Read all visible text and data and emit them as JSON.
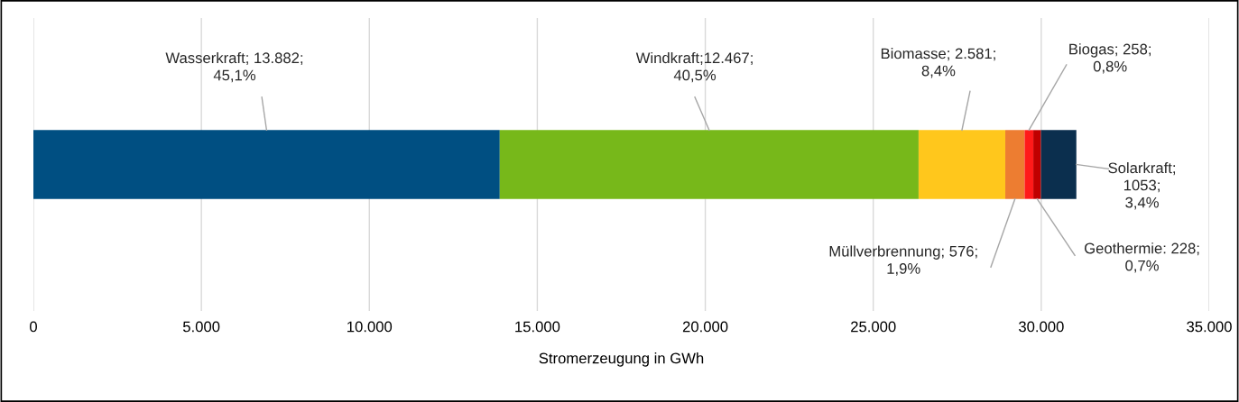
{
  "chart_data": {
    "type": "bar",
    "orientation": "horizontal",
    "stacked": true,
    "categories": [
      null
    ],
    "xlabel": "Stromerzeugung in GWh",
    "xlim": [
      0,
      35000
    ],
    "xticks": [
      0,
      {
        "value": 5000,
        "label": "5.000"
      },
      {
        "value": 10000,
        "label": "10.000"
      },
      {
        "value": 15000,
        "label": "15.000"
      },
      {
        "value": 20000,
        "label": "20.000"
      },
      {
        "value": 25000,
        "label": "25.000"
      },
      {
        "value": 30000,
        "label": "30.000"
      },
      {
        "value": 35000,
        "label": "35.000"
      }
    ],
    "grid": "x",
    "legend": false,
    "tick_labels": "x",
    "series": [
      {
        "color": "#004f82",
        "values": [
          13882
        ],
        "value_labels": [
          "Wasserkraft; 13.882;\n45,1%"
        ]
      },
      {
        "color": "#77b81a",
        "values": [
          12467
        ],
        "value_labels": [
          "Windkraft;12.467;\n40,5%"
        ]
      },
      {
        "color": "#ffc71c",
        "values": [
          2581
        ],
        "value_labels": [
          "Biomasse; 2.581;\n8,4%"
        ]
      },
      {
        "color": "#ed7d31",
        "values": [
          576
        ],
        "value_labels": [
          "Müllverbrennung; 576;\n1,9%"
        ]
      },
      {
        "color": "#ff1a1a",
        "values": [
          258
        ],
        "value_labels": [
          "Biogas; 258;\n0,8%"
        ]
      },
      {
        "color": "#c00000",
        "values": [
          228
        ],
        "value_labels": [
          "Geothermie: 228;\n0,7%"
        ]
      },
      {
        "color": "#0b2f4e",
        "values": [
          1053
        ],
        "value_labels": [
          "Solarkraft;\n1053;\n3,4%"
        ]
      }
    ]
  }
}
